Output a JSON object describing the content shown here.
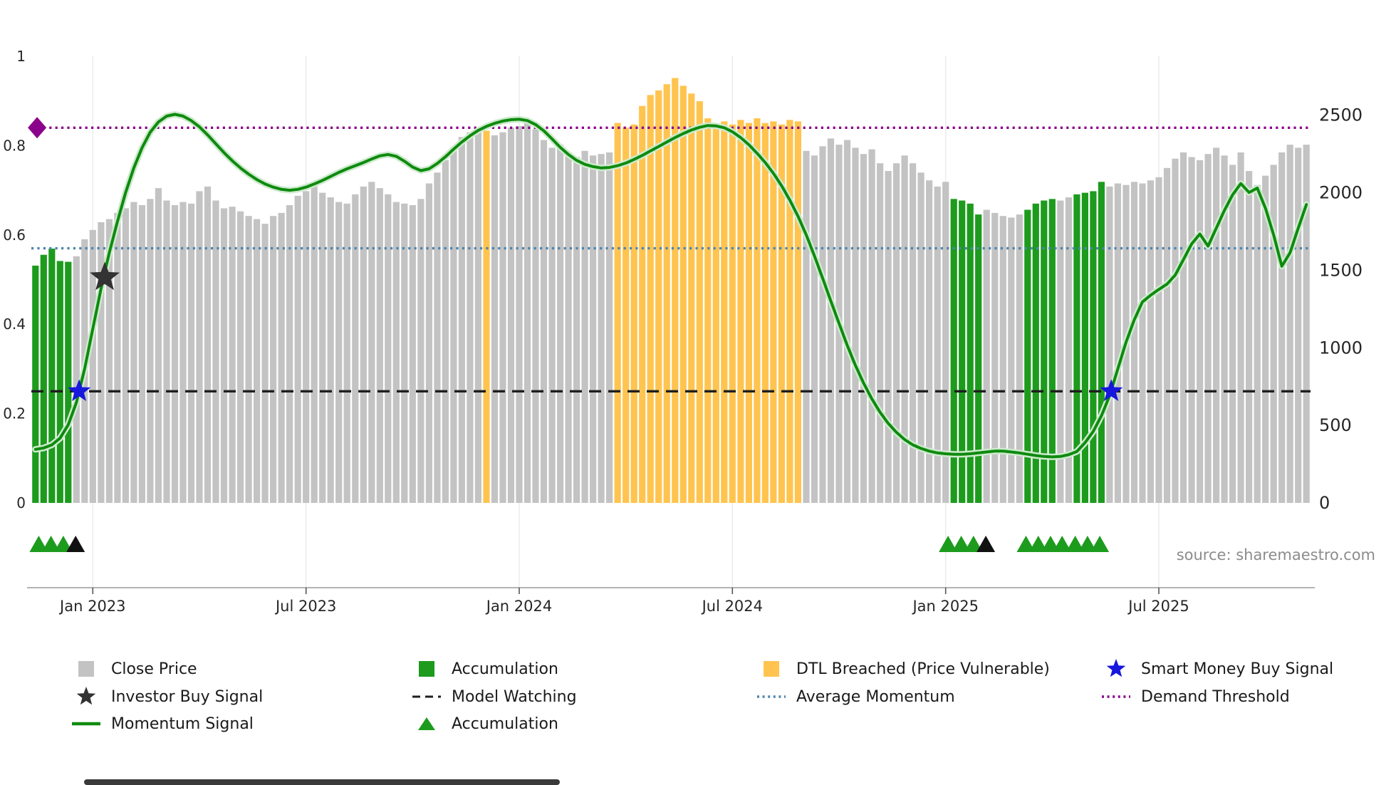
{
  "chart_data": {
    "type": "bar",
    "subtype": "weekly close price bars with momentum signal overlay",
    "x_ticks": [
      {
        "label": "Jan 2023",
        "index": 7
      },
      {
        "label": "Jul 2023",
        "index": 33
      },
      {
        "label": "Jan 2024",
        "index": 59
      },
      {
        "label": "Jul 2024",
        "index": 85
      },
      {
        "label": "Jan 2025",
        "index": 111
      },
      {
        "label": "Jul 2025",
        "index": 137
      }
    ],
    "left_axis": {
      "tick_labels": [
        "0",
        "0.2",
        "0.4",
        "0.6",
        "0.8",
        "1"
      ],
      "tick_values": [
        0,
        0.2,
        0.4,
        0.6,
        0.8,
        1
      ],
      "min": 0,
      "max": 1
    },
    "right_axis": {
      "tick_labels": [
        "0",
        "500",
        "1000",
        "1500",
        "2000",
        "2500"
      ],
      "tick_values": [
        0,
        500,
        1000,
        1500,
        2000,
        2500
      ],
      "min": 0,
      "max": 2880
    },
    "close_price": {
      "name": "Close Price",
      "values": [
        1530,
        1600,
        1640,
        1560,
        1555,
        1590,
        1700,
        1760,
        1810,
        1830,
        1870,
        1900,
        1940,
        1920,
        1960,
        2030,
        1950,
        1920,
        1940,
        1930,
        2010,
        2040,
        1950,
        1900,
        1910,
        1880,
        1850,
        1830,
        1800,
        1850,
        1870,
        1920,
        1980,
        2010,
        2050,
        2000,
        1970,
        1940,
        1930,
        1990,
        2040,
        2070,
        2030,
        1990,
        1940,
        1930,
        1920,
        1960,
        2060,
        2130,
        2210,
        2290,
        2360,
        2390,
        2410,
        2400,
        2370,
        2390,
        2420,
        2430,
        2470,
        2410,
        2340,
        2290,
        2310,
        2260,
        2230,
        2270,
        2240,
        2250,
        2260,
        2450,
        2420,
        2440,
        2560,
        2630,
        2660,
        2700,
        2740,
        2690,
        2640,
        2590,
        2480,
        2440,
        2460,
        2440,
        2470,
        2450,
        2480,
        2450,
        2460,
        2440,
        2470,
        2460,
        2270,
        2240,
        2300,
        2350,
        2310,
        2340,
        2290,
        2250,
        2280,
        2190,
        2140,
        2190,
        2240,
        2190,
        2130,
        2080,
        2040,
        2070,
        1960,
        1950,
        1930,
        1860,
        1890,
        1870,
        1850,
        1840,
        1860,
        1890,
        1930,
        1950,
        1960,
        1950,
        1970,
        1990,
        2000,
        2010,
        2070,
        2040,
        2060,
        2050,
        2070,
        2060,
        2080,
        2100,
        2160,
        2220,
        2260,
        2230,
        2210,
        2250,
        2290,
        2240,
        2180,
        2260,
        2140,
        2050,
        2110,
        2180,
        2260,
        2310,
        2290,
        2310
      ],
      "segments": {
        "accumulation": [
          [
            0,
            4
          ],
          [
            112,
            115
          ],
          [
            121,
            124
          ],
          [
            127,
            130
          ]
        ],
        "dtl_breached": [
          [
            55,
            55
          ],
          [
            71,
            93
          ]
        ]
      }
    },
    "momentum_signal": {
      "name": "Momentum Signal",
      "values": [
        0.12,
        0.123,
        0.13,
        0.145,
        0.175,
        0.225,
        0.3,
        0.39,
        0.48,
        0.56,
        0.63,
        0.695,
        0.75,
        0.795,
        0.83,
        0.853,
        0.866,
        0.87,
        0.866,
        0.856,
        0.842,
        0.824,
        0.804,
        0.784,
        0.766,
        0.75,
        0.736,
        0.724,
        0.714,
        0.707,
        0.702,
        0.7,
        0.702,
        0.707,
        0.714,
        0.722,
        0.731,
        0.74,
        0.748,
        0.755,
        0.762,
        0.77,
        0.777,
        0.78,
        0.776,
        0.765,
        0.752,
        0.744,
        0.748,
        0.76,
        0.775,
        0.792,
        0.808,
        0.822,
        0.834,
        0.843,
        0.85,
        0.855,
        0.858,
        0.859,
        0.856,
        0.847,
        0.833,
        0.815,
        0.796,
        0.78,
        0.767,
        0.758,
        0.753,
        0.75,
        0.751,
        0.755,
        0.761,
        0.769,
        0.778,
        0.788,
        0.798,
        0.808,
        0.818,
        0.827,
        0.835,
        0.841,
        0.845,
        0.844,
        0.84,
        0.831,
        0.818,
        0.802,
        0.783,
        0.762,
        0.738,
        0.71,
        0.678,
        0.642,
        0.6,
        0.553,
        0.503,
        0.452,
        0.402,
        0.353,
        0.308,
        0.268,
        0.233,
        0.203,
        0.178,
        0.158,
        0.142,
        0.13,
        0.122,
        0.116,
        0.112,
        0.11,
        0.109,
        0.109,
        0.11,
        0.112,
        0.114,
        0.116,
        0.116,
        0.114,
        0.112,
        0.109,
        0.106,
        0.104,
        0.103,
        0.104,
        0.108,
        0.115,
        0.135,
        0.16,
        0.195,
        0.24,
        0.3,
        0.36,
        0.41,
        0.45,
        0.465,
        0.478,
        0.49,
        0.51,
        0.545,
        0.58,
        0.602,
        0.575,
        0.615,
        0.655,
        0.69,
        0.715,
        0.695,
        0.705,
        0.66,
        0.6,
        0.53,
        0.56,
        0.615,
        0.668
      ]
    },
    "hlines": [
      {
        "name": "Demand Threshold",
        "y": 0.84,
        "style": "dotted",
        "color_key": "demand_threshold"
      },
      {
        "name": "Average Momentum",
        "y": 0.57,
        "style": "dotted",
        "color_key": "average_momentum"
      },
      {
        "name": "Model Watching",
        "y": 0.25,
        "style": "dashed",
        "color_key": "model_watching"
      }
    ],
    "markers": {
      "investor_buy_signals": [
        {
          "i": 8.45,
          "y": 0.505
        }
      ],
      "smart_money_buy_signals": [
        {
          "i": 5.33,
          "y": 0.25
        },
        {
          "i": 131.2,
          "y": 0.25
        }
      ],
      "demand_threshold_marker": {
        "i": 0.2,
        "y": 0.84
      },
      "accumulation_triangles": [
        {
          "i": 0.4,
          "color": "green"
        },
        {
          "i": 1.9,
          "color": "green"
        },
        {
          "i": 3.4,
          "color": "green"
        },
        {
          "i": 4.9,
          "color": "black"
        },
        {
          "i": 111.3,
          "color": "green"
        },
        {
          "i": 112.9,
          "color": "green"
        },
        {
          "i": 114.4,
          "color": "green"
        },
        {
          "i": 115.9,
          "color": "black"
        },
        {
          "i": 120.8,
          "color": "green"
        },
        {
          "i": 122.3,
          "color": "green"
        },
        {
          "i": 123.8,
          "color": "green"
        },
        {
          "i": 125.2,
          "color": "green"
        },
        {
          "i": 126.8,
          "color": "green"
        },
        {
          "i": 128.3,
          "color": "green"
        },
        {
          "i": 129.8,
          "color": "green"
        }
      ]
    },
    "source": "source: sharemaestro.com"
  },
  "colors": {
    "close_price": "#c3c3c3",
    "accumulation": "#1d9b1d",
    "dtl_breached": "#ffc44f",
    "momentum_line": "#0e8a0e",
    "momentum_halo": "#cdeacd",
    "average_momentum": "#4e85ad",
    "demand_threshold": "#8b008b",
    "model_watching": "#1f1f1f",
    "smart_money_star": "#1717dd",
    "investor_star": "#333333",
    "triangle_green": "#1d9b1d",
    "triangle_black": "#111111",
    "axis_text": "#262626",
    "grid": "#e9e9e9",
    "spine": "#9a9a9a",
    "source_text": "#8c8c8c"
  },
  "legend": {
    "items": [
      {
        "id": "close-price",
        "label": "Close Price",
        "swatch": "square",
        "color_key": "close_price",
        "col": 0,
        "row": 0
      },
      {
        "id": "accumulation-bars",
        "label": "Accumulation",
        "swatch": "square",
        "color_key": "accumulation",
        "col": 1,
        "row": 0
      },
      {
        "id": "dtl-breached",
        "label": "DTL Breached (Price Vulnerable)",
        "swatch": "square",
        "color_key": "dtl_breached",
        "col": 2,
        "row": 0
      },
      {
        "id": "smart-money-buy-signal",
        "label": "Smart Money Buy Signal",
        "swatch": "star",
        "color_key": "smart_money_star",
        "col": 3,
        "row": 0
      },
      {
        "id": "investor-buy-signal",
        "label": "Investor Buy Signal",
        "swatch": "star",
        "color_key": "investor_star",
        "col": 0,
        "row": 1
      },
      {
        "id": "model-watching",
        "label": "Model Watching",
        "swatch": "dashed-line",
        "color_key": "model_watching",
        "col": 1,
        "row": 1
      },
      {
        "id": "average-momentum",
        "label": "Average Momentum",
        "swatch": "dotted-line",
        "color_key": "average_momentum",
        "col": 2,
        "row": 1
      },
      {
        "id": "demand-threshold",
        "label": "Demand Threshold",
        "swatch": "dotted-line",
        "color_key": "demand_threshold",
        "col": 3,
        "row": 1
      },
      {
        "id": "momentum-signal",
        "label": "Momentum Signal",
        "swatch": "solid-line",
        "color_key": "momentum_line",
        "col": 0,
        "row": 2
      },
      {
        "id": "accumulation-triangle",
        "label": "Accumulation",
        "swatch": "triangle",
        "color_key": "accumulation",
        "col": 1,
        "row": 2
      }
    ]
  }
}
